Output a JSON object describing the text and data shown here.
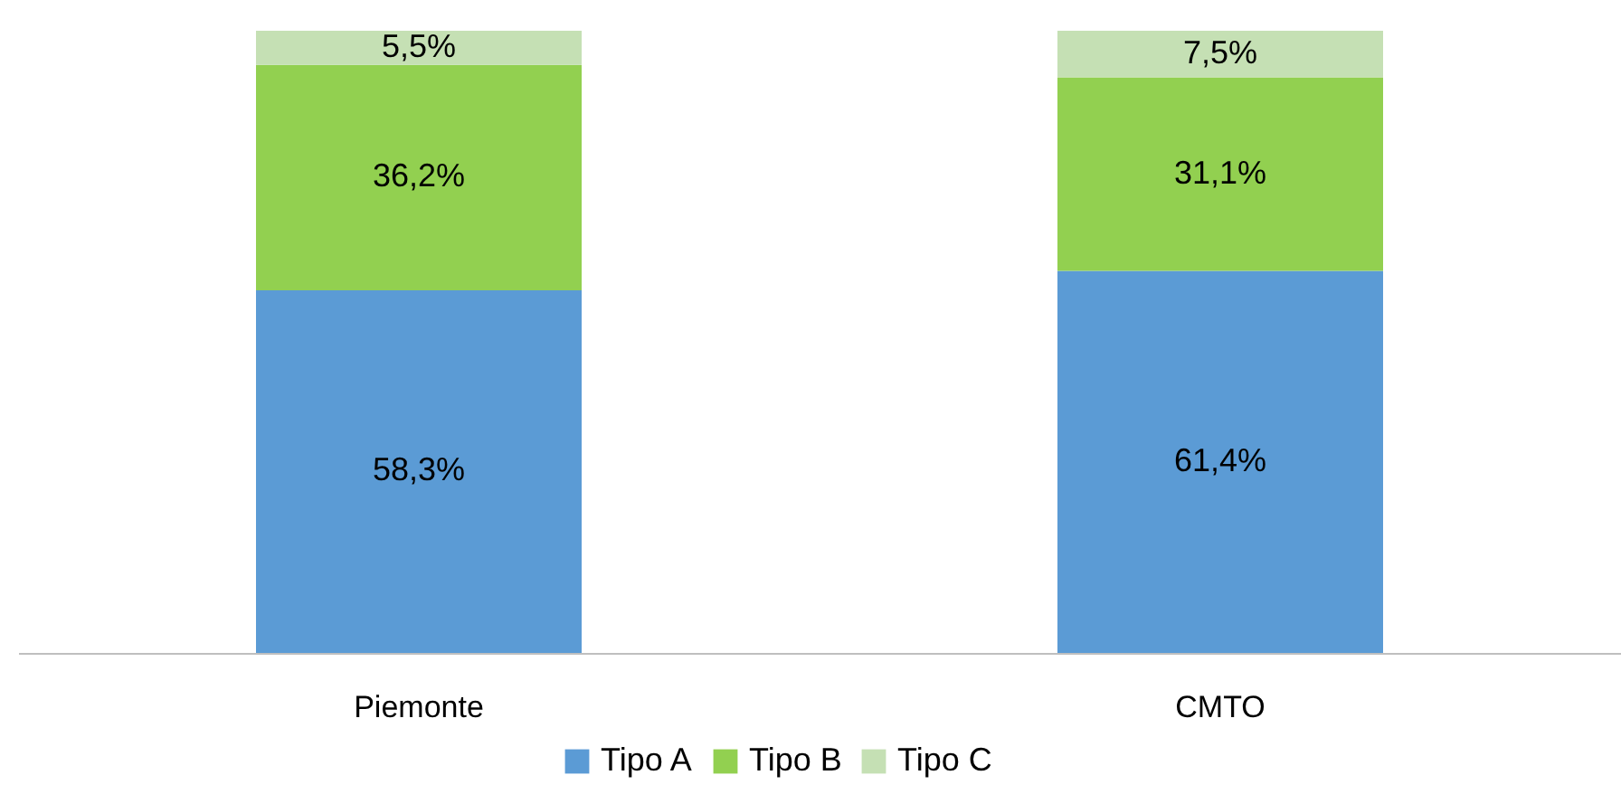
{
  "chart_data": {
    "type": "bar",
    "stacked": true,
    "categories": [
      "Piemonte",
      "CMTO"
    ],
    "ylim": [
      0,
      100
    ],
    "tick_labels": "x",
    "grid": false,
    "legend": "bottom",
    "series": [
      {
        "name": "Tipo A",
        "color": "#5b9bd5",
        "values": [
          58.3,
          61.4
        ],
        "value_labels": [
          "58,3%",
          "61,4%"
        ]
      },
      {
        "name": "Tipo B",
        "color": "#92d050",
        "values": [
          36.2,
          31.1
        ],
        "value_labels": [
          "36,2%",
          "31,1%"
        ]
      },
      {
        "name": "Tipo C",
        "color": "#c5e0b4",
        "values": [
          5.5,
          7.5
        ],
        "value_labels": [
          "5,5%",
          "7,5%"
        ]
      }
    ]
  }
}
